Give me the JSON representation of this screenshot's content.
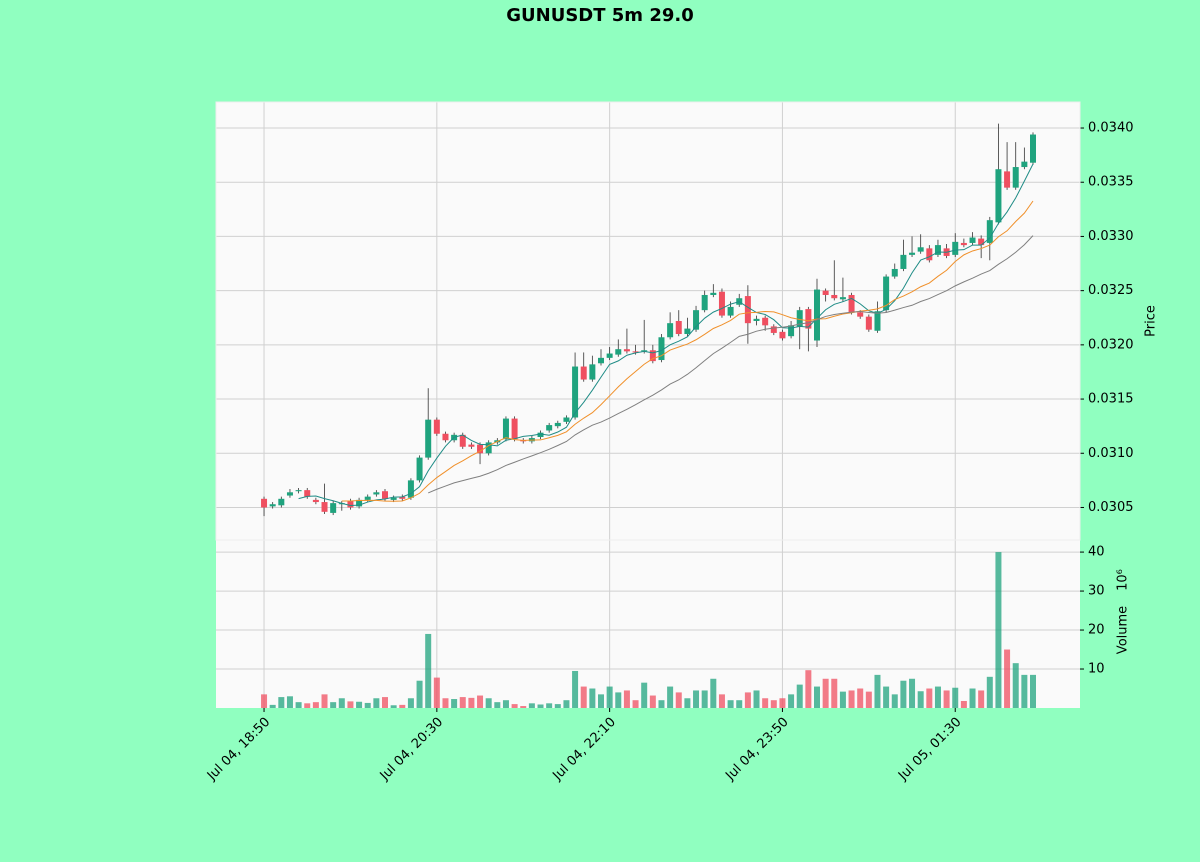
{
  "chart_data": {
    "type": "candlestick",
    "title": "GUNUSDT 5m 29.0",
    "ylabel": "Price",
    "volume_label": "Volume",
    "volume_scale": "10⁶",
    "background": "#90ffc0",
    "up_color": "#1fa37e",
    "down_color": "#ef4f60",
    "grid": true,
    "mav": [
      5,
      10,
      20
    ],
    "mav_colors": [
      "#1f8c86",
      "#f0902a",
      "#808080"
    ],
    "xlim": [
      -5.56,
      94.44
    ],
    "xticks": [
      {
        "value": 0,
        "label": "Jul 04, 18:50"
      },
      {
        "value": 20,
        "label": "Jul 04, 20:30"
      },
      {
        "value": 40,
        "label": "Jul 04, 22:10"
      },
      {
        "value": 60,
        "label": "Jul 04, 23:50"
      },
      {
        "value": 80,
        "label": "Jul 05, 01:30"
      }
    ],
    "ylim": [
      0.0302,
      0.03424
    ],
    "yticks": [
      0.0305,
      {
        "value": 0.031,
        "label": "0.0310"
      },
      0.0315,
      {
        "value": 0.032,
        "label": "0.0320"
      },
      0.0325,
      {
        "value": 0.033,
        "label": "0.0330"
      },
      0.0335,
      {
        "value": 0.034,
        "label": "0.0340"
      }
    ],
    "y2lim": [
      0,
      43.1
    ],
    "y2ticks": [
      10,
      20,
      30,
      40
    ],
    "open": [
      0.03058,
      0.03051,
      0.03052,
      0.03061,
      0.03065,
      0.03066,
      0.03057,
      0.03055,
      0.03045,
      0.03053,
      0.03056,
      0.03051,
      0.03057,
      0.03062,
      0.03065,
      0.03057,
      0.0306,
      0.03059,
      0.03075,
      0.03096,
      0.03131,
      0.03118,
      0.03112,
      0.03117,
      0.03108,
      0.03108,
      0.031,
      0.0311,
      0.03113,
      0.03132,
      0.03112,
      0.03111,
      0.03115,
      0.03121,
      0.03125,
      0.03129,
      0.03133,
      0.0318,
      0.03168,
      0.03183,
      0.03188,
      0.03191,
      0.03196,
      0.03194,
      0.03194,
      0.03195,
      0.03186,
      0.03207,
      0.03222,
      0.0321,
      0.03214,
      0.03232,
      0.03246,
      0.03249,
      0.03227,
      0.03237,
      0.03245,
      0.03222,
      0.03225,
      0.03217,
      0.03212,
      0.03208,
      0.03217,
      0.03233,
      0.03204,
      0.0325,
      0.03246,
      0.03242,
      0.03246,
      0.0323,
      0.03226,
      0.03213,
      0.03232,
      0.03263,
      0.0327,
      0.03283,
      0.03286,
      0.03289,
      0.03283,
      0.03289,
      0.03283,
      0.03294,
      0.03294,
      0.03298,
      0.03294,
      0.03313,
      0.0336,
      0.03345,
      0.03364,
      0.03368
    ],
    "high": [
      0.0306,
      0.03055,
      0.0306,
      0.03067,
      0.03068,
      0.03068,
      0.03059,
      0.03072,
      0.03056,
      0.03056,
      0.03058,
      0.03059,
      0.03062,
      0.03066,
      0.03067,
      0.03061,
      0.03062,
      0.03077,
      0.03098,
      0.0316,
      0.03133,
      0.0312,
      0.03119,
      0.03119,
      0.0311,
      0.0311,
      0.03112,
      0.03114,
      0.03134,
      0.03134,
      0.03114,
      0.03116,
      0.03121,
      0.03128,
      0.0313,
      0.03135,
      0.03193,
      0.03193,
      0.0319,
      0.03196,
      0.03198,
      0.03205,
      0.03215,
      0.032,
      0.03223,
      0.032,
      0.0321,
      0.0323,
      0.03232,
      0.03225,
      0.03236,
      0.0325,
      0.03256,
      0.03252,
      0.0324,
      0.03247,
      0.03255,
      0.03227,
      0.03227,
      0.03219,
      0.03214,
      0.03222,
      0.03235,
      0.03235,
      0.03261,
      0.03252,
      0.03278,
      0.03262,
      0.03248,
      0.03232,
      0.03228,
      0.0324,
      0.03265,
      0.03275,
      0.03297,
      0.033,
      0.03302,
      0.03292,
      0.03297,
      0.03293,
      0.03303,
      0.03298,
      0.03304,
      0.03301,
      0.03318,
      0.03404,
      0.03387,
      0.03387,
      0.03382,
      0.03396
    ],
    "low": [
      0.03042,
      0.03049,
      0.0305,
      0.03059,
      0.03063,
      0.03058,
      0.03053,
      0.03044,
      0.03043,
      0.03047,
      0.03048,
      0.03049,
      0.03055,
      0.0306,
      0.03056,
      0.03055,
      0.03056,
      0.03057,
      0.03073,
      0.03094,
      0.03116,
      0.0311,
      0.0311,
      0.03104,
      0.03104,
      0.0309,
      0.03098,
      0.03108,
      0.03111,
      0.03111,
      0.03109,
      0.03109,
      0.03113,
      0.03119,
      0.03123,
      0.03127,
      0.03131,
      0.03166,
      0.03166,
      0.03181,
      0.03186,
      0.03189,
      0.03192,
      0.03191,
      0.03192,
      0.03183,
      0.03184,
      0.03205,
      0.03208,
      0.03208,
      0.03212,
      0.0323,
      0.03244,
      0.03225,
      0.03225,
      0.03235,
      0.03201,
      0.03218,
      0.03213,
      0.03209,
      0.03204,
      0.03206,
      0.03196,
      0.03194,
      0.03198,
      0.0324,
      0.03241,
      0.0324,
      0.03228,
      0.03224,
      0.03212,
      0.03211,
      0.0323,
      0.03261,
      0.03268,
      0.03281,
      0.03284,
      0.03276,
      0.03281,
      0.0328,
      0.03281,
      0.0329,
      0.03292,
      0.0328,
      0.03278,
      0.03311,
      0.03343,
      0.03343,
      0.03362,
      0.03366
    ],
    "close": [
      0.0305,
      0.03053,
      0.03058,
      0.03064,
      0.03066,
      0.0306,
      0.03055,
      0.03046,
      0.03054,
      0.03054,
      0.0305,
      0.03057,
      0.0306,
      0.03064,
      0.03058,
      0.03059,
      0.03058,
      0.03075,
      0.03096,
      0.03131,
      0.03118,
      0.03112,
      0.03117,
      0.03106,
      0.03106,
      0.031,
      0.0311,
      0.03112,
      0.03132,
      0.03113,
      0.03111,
      0.03114,
      0.03119,
      0.03126,
      0.03128,
      0.03133,
      0.0318,
      0.03168,
      0.03182,
      0.03188,
      0.03192,
      0.03196,
      0.03194,
      0.03193,
      0.03195,
      0.03185,
      0.03207,
      0.0322,
      0.0321,
      0.03215,
      0.03232,
      0.03246,
      0.03248,
      0.03227,
      0.03235,
      0.03243,
      0.0322,
      0.03224,
      0.03218,
      0.03211,
      0.03206,
      0.03218,
      0.03232,
      0.03215,
      0.03251,
      0.03246,
      0.03243,
      0.03244,
      0.0323,
      0.03226,
      0.03214,
      0.03231,
      0.03263,
      0.0327,
      0.03283,
      0.03285,
      0.0329,
      0.03278,
      0.03292,
      0.03282,
      0.03295,
      0.03292,
      0.03299,
      0.03292,
      0.03315,
      0.03362,
      0.03345,
      0.03364,
      0.03369,
      0.03394
    ],
    "volume": [
      3.5,
      0.8,
      2.8,
      3.0,
      1.5,
      1.2,
      1.5,
      3.5,
      1.5,
      2.5,
      1.7,
      1.6,
      1.3,
      2.5,
      2.8,
      0.7,
      0.8,
      2.5,
      7,
      19,
      7.8,
      2.5,
      2.3,
      2.8,
      2.6,
      3.2,
      2.5,
      1.5,
      2.0,
      1.0,
      0.5,
      1.2,
      0.9,
      1.2,
      1.0,
      2.0,
      9.5,
      5.5,
      5.0,
      3.5,
      5.5,
      4,
      4.5,
      2,
      6.5,
      3.2,
      2.0,
      5.5,
      4.0,
      2.5,
      4.5,
      4.5,
      7.5,
      3.5,
      2,
      2,
      4.0,
      4.5,
      2.5,
      2.0,
      2.5,
      3.5,
      6.0,
      9.7,
      5.5,
      7.5,
      7.5,
      4.2,
      4.5,
      5.0,
      4.2,
      8.5,
      5.5,
      3.5,
      7.0,
      7.5,
      4.3,
      5.0,
      5.5,
      4.5,
      5.2,
      1.8,
      5.0,
      4.5,
      8.0,
      40,
      15,
      11.5,
      8.5,
      8.5
    ]
  }
}
